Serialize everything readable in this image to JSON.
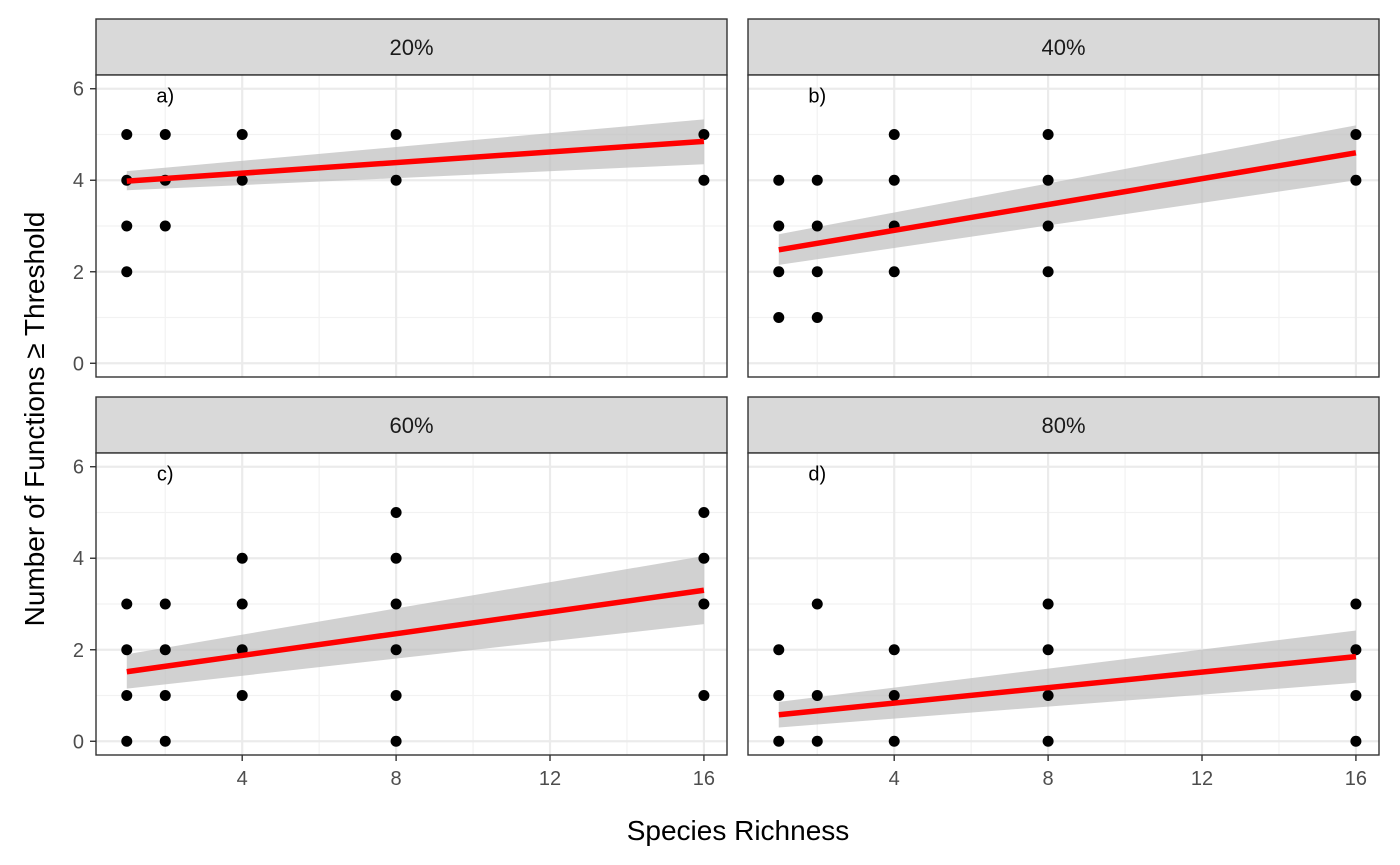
{
  "chart_data": {
    "type": "scatter",
    "xlabel": "Species Richness",
    "ylabel": "Number of Functions ≥ Threshold",
    "xlim": [
      0.2,
      16.6
    ],
    "ylim": [
      -0.3,
      6.3
    ],
    "x_ticks": [
      4,
      8,
      12,
      16
    ],
    "y_ticks": [
      0,
      2,
      4,
      6
    ],
    "grid": true,
    "colors": {
      "points": "#000000",
      "fit_line": "#ff0000",
      "ribbon": "#bdbdbd",
      "strip_fill": "#d9d9d9",
      "grid": "#ebebeb"
    },
    "panels": [
      {
        "strip": "20%",
        "tag": "a)",
        "points": [
          [
            1,
            2
          ],
          [
            1,
            3
          ],
          [
            1,
            4
          ],
          [
            1,
            5
          ],
          [
            2,
            3
          ],
          [
            2,
            4
          ],
          [
            2,
            5
          ],
          [
            4,
            4
          ],
          [
            4,
            5
          ],
          [
            8,
            4
          ],
          [
            8,
            5
          ],
          [
            16,
            4
          ],
          [
            16,
            5
          ]
        ],
        "fit": {
          "x": [
            1,
            16
          ],
          "y": [
            3.98,
            4.85
          ]
        },
        "ci": {
          "x": [
            1,
            16
          ],
          "lower": [
            3.78,
            4.35
          ],
          "upper": [
            4.2,
            5.33
          ]
        }
      },
      {
        "strip": "40%",
        "tag": "b)",
        "points": [
          [
            1,
            1
          ],
          [
            1,
            2
          ],
          [
            1,
            3
          ],
          [
            1,
            4
          ],
          [
            2,
            1
          ],
          [
            2,
            2
          ],
          [
            2,
            3
          ],
          [
            2,
            4
          ],
          [
            4,
            2
          ],
          [
            4,
            3
          ],
          [
            4,
            4
          ],
          [
            4,
            5
          ],
          [
            8,
            2
          ],
          [
            8,
            3
          ],
          [
            8,
            4
          ],
          [
            8,
            5
          ],
          [
            16,
            4
          ],
          [
            16,
            5
          ]
        ],
        "fit": {
          "x": [
            1,
            16
          ],
          "y": [
            2.48,
            4.6
          ]
        },
        "ci": {
          "x": [
            1,
            16
          ],
          "lower": [
            2.15,
            4.0
          ],
          "upper": [
            2.82,
            5.2
          ]
        }
      },
      {
        "strip": "60%",
        "tag": "c)",
        "points": [
          [
            1,
            0
          ],
          [
            1,
            1
          ],
          [
            1,
            2
          ],
          [
            1,
            3
          ],
          [
            2,
            0
          ],
          [
            2,
            1
          ],
          [
            2,
            2
          ],
          [
            2,
            3
          ],
          [
            4,
            1
          ],
          [
            4,
            2
          ],
          [
            4,
            3
          ],
          [
            4,
            4
          ],
          [
            8,
            0
          ],
          [
            8,
            1
          ],
          [
            8,
            2
          ],
          [
            8,
            3
          ],
          [
            8,
            4
          ],
          [
            8,
            5
          ],
          [
            16,
            1
          ],
          [
            16,
            3
          ],
          [
            16,
            4
          ],
          [
            16,
            5
          ]
        ],
        "fit": {
          "x": [
            1,
            16
          ],
          "y": [
            1.52,
            3.3
          ]
        },
        "ci": {
          "x": [
            1,
            16
          ],
          "lower": [
            1.15,
            2.56
          ],
          "upper": [
            1.9,
            4.05
          ]
        }
      },
      {
        "strip": "80%",
        "tag": "d)",
        "points": [
          [
            1,
            0
          ],
          [
            1,
            1
          ],
          [
            1,
            2
          ],
          [
            2,
            0
          ],
          [
            2,
            1
          ],
          [
            2,
            3
          ],
          [
            4,
            0
          ],
          [
            4,
            1
          ],
          [
            4,
            2
          ],
          [
            8,
            0
          ],
          [
            8,
            1
          ],
          [
            8,
            2
          ],
          [
            8,
            3
          ],
          [
            16,
            0
          ],
          [
            16,
            1
          ],
          [
            16,
            2
          ],
          [
            16,
            3
          ]
        ],
        "fit": {
          "x": [
            1,
            16
          ],
          "y": [
            0.58,
            1.85
          ]
        },
        "ci": {
          "x": [
            1,
            16
          ],
          "lower": [
            0.3,
            1.28
          ],
          "upper": [
            0.86,
            2.42
          ]
        }
      }
    ]
  }
}
